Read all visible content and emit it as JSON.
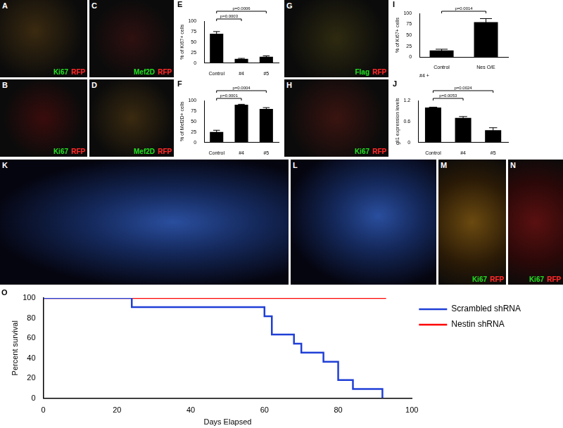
{
  "panels": [
    {
      "letter": "A",
      "stain": [
        {
          "text": "Ki67",
          "color": "#22dd22"
        },
        {
          "text": "RFP",
          "color": "#ff2a2a"
        }
      ]
    },
    {
      "letter": "B",
      "stain": [
        {
          "text": "Ki67",
          "color": "#22dd22"
        },
        {
          "text": "RFP",
          "color": "#ff2a2a"
        }
      ]
    },
    {
      "letter": "C",
      "stain": [
        {
          "text": "Mef2D",
          "color": "#22dd22"
        },
        {
          "text": "RFP",
          "color": "#ff2a2a"
        }
      ]
    },
    {
      "letter": "D",
      "stain": [
        {
          "text": "Mef2D",
          "color": "#22dd22"
        },
        {
          "text": "RFP",
          "color": "#ff2a2a"
        }
      ]
    },
    {
      "letter": "G",
      "stain": [
        {
          "text": "Flag",
          "color": "#22dd22"
        },
        {
          "text": "RFP",
          "color": "#ff2a2a"
        }
      ]
    },
    {
      "letter": "H",
      "stain": [
        {
          "text": "Ki67",
          "color": "#22dd22"
        },
        {
          "text": "RFP",
          "color": "#ff2a2a"
        }
      ]
    },
    {
      "letter": "K",
      "stain": []
    },
    {
      "letter": "L",
      "stain": []
    },
    {
      "letter": "M",
      "stain": [
        {
          "text": "Ki67",
          "color": "#22dd22"
        },
        {
          "text": "RFP",
          "color": "#ff2a2a"
        }
      ]
    },
    {
      "letter": "N",
      "stain": [
        {
          "text": "Ki67",
          "color": "#22dd22"
        },
        {
          "text": "RFP",
          "color": "#ff2a2a"
        }
      ]
    }
  ],
  "chart_data": [
    {
      "panel": "E",
      "type": "bar",
      "categories": [
        "Control",
        "#4",
        "#5"
      ],
      "values": [
        70,
        10,
        15
      ],
      "errors": [
        5,
        1,
        2
      ],
      "color": "#000000",
      "y_label": "% of Ki67+ cells",
      "ylim": [
        0,
        100
      ],
      "yticks": [
        0,
        25,
        50,
        75,
        100
      ],
      "grid": false,
      "comparisons": [
        {
          "pair": [
            0,
            1
          ],
          "label": "p=0.0003"
        },
        {
          "pair": [
            0,
            2
          ],
          "label": "p=0.0006"
        }
      ]
    },
    {
      "panel": "F",
      "type": "bar",
      "categories": [
        "Control",
        "#4",
        "#5"
      ],
      "values": [
        25,
        90,
        80
      ],
      "errors": [
        4,
        1,
        3
      ],
      "color": "#000000",
      "y_label": "% of Mef2D+ cells",
      "ylim": [
        0,
        100
      ],
      "yticks": [
        0,
        25,
        50,
        75,
        100
      ],
      "grid": false,
      "comparisons": [
        {
          "pair": [
            0,
            1
          ],
          "label": "p=0.0001"
        },
        {
          "pair": [
            0,
            2
          ],
          "label": "p=0.0004"
        }
      ]
    },
    {
      "panel": "I",
      "type": "bar",
      "categories": [
        "Control",
        "Nes O/E"
      ],
      "values": [
        15,
        80
      ],
      "errors": [
        3,
        8
      ],
      "color": "#000000",
      "x_label": "#4 +",
      "y_label": "% of Ki67+ cells",
      "ylim": [
        0,
        100
      ],
      "yticks": [
        0,
        25,
        50,
        75,
        100
      ],
      "grid": false,
      "comparisons": [
        {
          "pair": [
            0,
            1
          ],
          "label": "p=0.0014"
        }
      ]
    },
    {
      "panel": "J",
      "type": "bar",
      "categories": [
        "Control",
        "#4",
        "#5"
      ],
      "values": [
        1.0,
        0.7,
        0.35
      ],
      "errors": [
        0.01,
        0.04,
        0.07
      ],
      "color": "#000000",
      "y_label": "gli1 expression levels",
      "ylim": [
        0,
        1.2
      ],
      "yticks": [
        0,
        0.6,
        1.2
      ],
      "grid": false,
      "comparisons": [
        {
          "pair": [
            0,
            1
          ],
          "label": "p=0.0053"
        },
        {
          "pair": [
            0,
            2
          ],
          "label": "p=0.0024"
        }
      ]
    },
    {
      "panel": "O",
      "type": "line",
      "x_label": "Days Elapsed",
      "y_label": "Percent survival",
      "xlim": [
        0,
        100
      ],
      "xticks": [
        0,
        20,
        40,
        60,
        80,
        100
      ],
      "ylim": [
        0,
        100
      ],
      "yticks": [
        0,
        20,
        40,
        60,
        80,
        100
      ],
      "grid": false,
      "legend": "right",
      "series": [
        {
          "name": "Scrambled shRNA",
          "color": "#1f3fd6",
          "line_style": "step",
          "x": [
            0,
            24,
            60,
            62,
            68,
            70,
            76,
            80,
            84,
            92
          ],
          "values": [
            100,
            90.9,
            81.8,
            63.6,
            54.5,
            45.5,
            36.4,
            18.2,
            9.1,
            0
          ]
        },
        {
          "name": "Nestin shRNA",
          "color": "#ff0000",
          "line_style": "step",
          "x": [
            0,
            93
          ],
          "values": [
            100,
            100
          ]
        }
      ]
    }
  ]
}
